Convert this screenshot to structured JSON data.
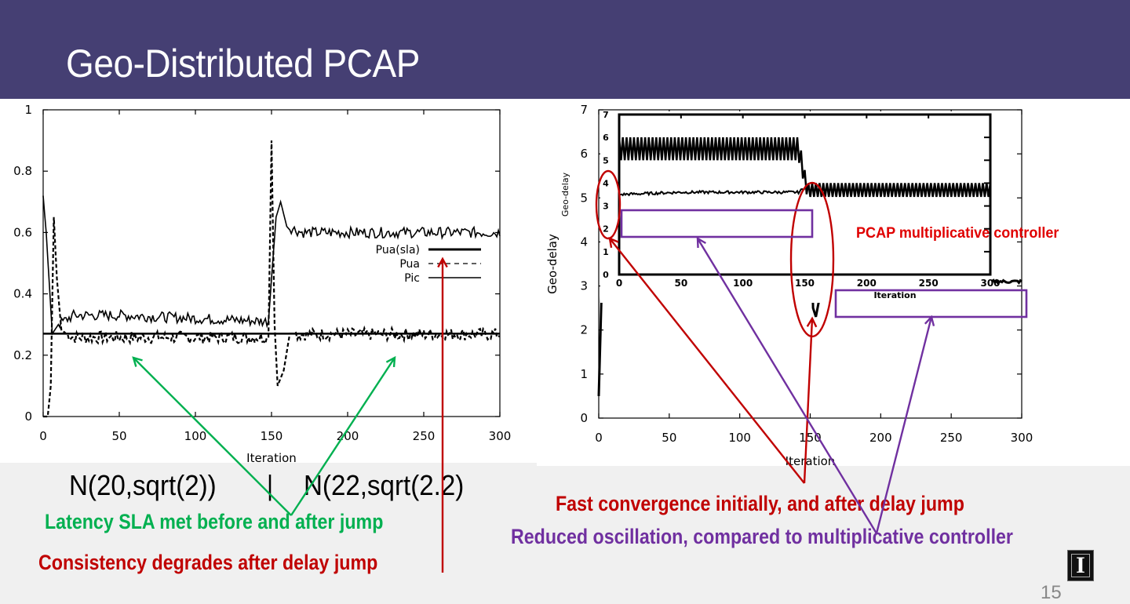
{
  "slide": {
    "title": "Geo-Distributed PCAP",
    "page_number": "15",
    "logo_glyph": "I",
    "captions": {
      "dist_left": "N(20,sqrt(2))",
      "dist_sep": "|",
      "dist_right": "N(22,sqrt(2.2)",
      "latency": "Latency SLA met before and after jump",
      "consistency": "Consistency degrades after delay jump",
      "fast": "Fast convergence initially, and after delay jump",
      "reduced": "Reduced oscillation, compared to multiplicative controller",
      "pcap_multiplicative": "PCAP multiplicative controller"
    },
    "colors": {
      "header": "#453f73",
      "green": "#00b050",
      "red": "#c00000",
      "purple": "#7030a0",
      "bright_red": "#e00000"
    }
  },
  "chart_data": [
    {
      "type": "line",
      "title": "",
      "xlabel": "Iteration",
      "ylabel": "",
      "xlim": [
        0,
        300
      ],
      "ylim": [
        0,
        1
      ],
      "xticks": [
        "0",
        "50",
        "100",
        "150",
        "200",
        "250",
        "300"
      ],
      "yticks": [
        "0",
        "0.2",
        "0.4",
        "0.6",
        "0.8",
        "1"
      ],
      "legend_position": "right-middle",
      "series": [
        {
          "name": "Pua(sla)",
          "style": "thick-solid",
          "points": [
            [
              0,
              0.27
            ],
            [
              300,
              0.27
            ]
          ]
        },
        {
          "name": "Pua",
          "style": "dashed",
          "points": [
            [
              0,
              0
            ],
            [
              3,
              0
            ],
            [
              5,
              0.1
            ],
            [
              7,
              0.65
            ],
            [
              9,
              0.45
            ],
            [
              12,
              0.28
            ],
            [
              20,
              0.26
            ],
            [
              50,
              0.26
            ],
            [
              100,
              0.26
            ],
            [
              148,
              0.26
            ],
            [
              150,
              0.9
            ],
            [
              152,
              0.3
            ],
            [
              154,
              0.1
            ],
            [
              158,
              0.15
            ],
            [
              162,
              0.27
            ],
            [
              200,
              0.27
            ],
            [
              250,
              0.27
            ],
            [
              300,
              0.27
            ]
          ]
        },
        {
          "name": "Pic",
          "style": "solid",
          "points": [
            [
              0,
              0.72
            ],
            [
              2,
              0.6
            ],
            [
              6,
              0.27
            ],
            [
              10,
              0.3
            ],
            [
              20,
              0.33
            ],
            [
              50,
              0.33
            ],
            [
              100,
              0.32
            ],
            [
              148,
              0.31
            ],
            [
              150,
              0.45
            ],
            [
              153,
              0.65
            ],
            [
              156,
              0.7
            ],
            [
              160,
              0.62
            ],
            [
              170,
              0.6
            ],
            [
              200,
              0.6
            ],
            [
              250,
              0.6
            ],
            [
              300,
              0.6
            ]
          ]
        }
      ]
    },
    {
      "type": "line",
      "title": "",
      "xlabel": "Iteration",
      "ylabel": "Geo-delay",
      "xlim": [
        0,
        300
      ],
      "ylim": [
        0,
        7
      ],
      "xticks": [
        "0",
        "50",
        "100",
        "150",
        "200",
        "250",
        "300"
      ],
      "yticks": [
        "0",
        "1",
        "2",
        "3",
        "4",
        "5",
        "6",
        "7"
      ],
      "series": [
        {
          "name": "PCAP",
          "style": "thick-solid",
          "points": [
            [
              0,
              0.5
            ],
            [
              3,
              4
            ],
            [
              6,
              6.3
            ],
            [
              9,
              5.6
            ],
            [
              12,
              5.2
            ],
            [
              50,
              5.2
            ],
            [
              100,
              5.2
            ],
            [
              148,
              5.2
            ],
            [
              150,
              5.1
            ],
            [
              151,
              4
            ],
            [
              152,
              2.5
            ],
            [
              154,
              2.3
            ],
            [
              157,
              2.8
            ],
            [
              161,
              3.1
            ],
            [
              200,
              3.1
            ],
            [
              250,
              3.1
            ],
            [
              300,
              3.1
            ]
          ]
        }
      ],
      "inset": {
        "xlabel": "Iteration",
        "ylabel": "Geo-delay",
        "xlim": [
          0,
          300
        ],
        "ylim": [
          0,
          7
        ],
        "xticks": [
          "0",
          "50",
          "100",
          "150",
          "200",
          "250",
          "300"
        ],
        "yticks": [
          "0",
          "1",
          "2",
          "3",
          "4",
          "5",
          "6",
          "7"
        ],
        "series": [
          {
            "name": "multiplicative",
            "style": "oscillating",
            "points": [
              [
                0,
                5.0
              ],
              [
                0,
                6.0
              ],
              [
                145,
                5.0
              ],
              [
                145,
                6.0
              ],
              [
                152,
                4.0
              ],
              [
                152,
                3.4
              ],
              [
                300,
                4.0
              ],
              [
                300,
                3.4
              ]
            ]
          },
          {
            "name": "PCAP",
            "style": "solid",
            "points": [
              [
                0,
                3.5
              ],
              [
                50,
                3.6
              ],
              [
                100,
                3.6
              ],
              [
                145,
                3.6
              ],
              [
                150,
                3.8
              ]
            ]
          }
        ]
      }
    }
  ]
}
